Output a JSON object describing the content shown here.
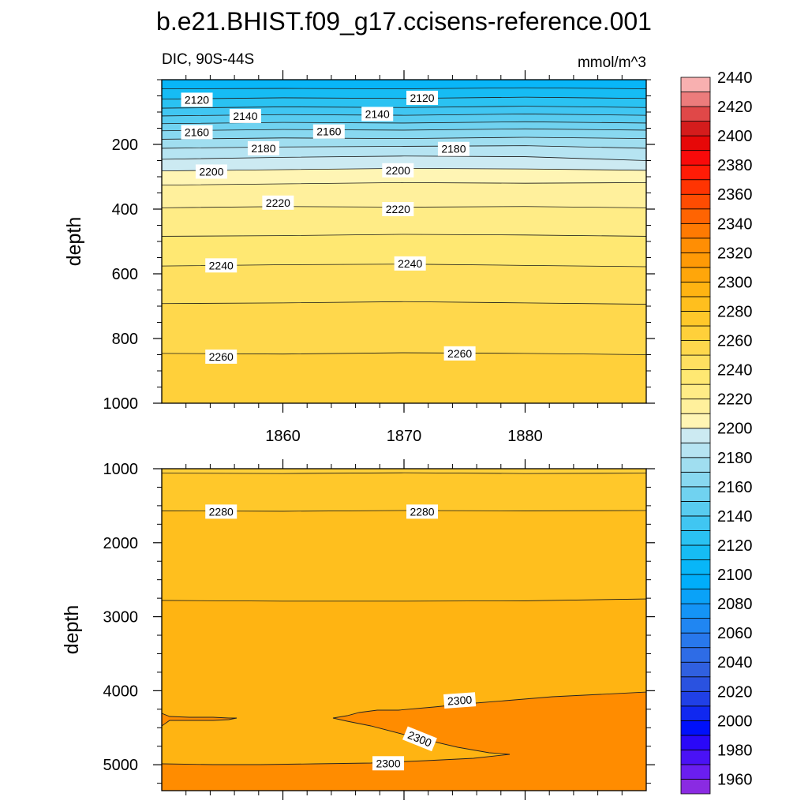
{
  "title": "b.e21.BHIST.f09_g17.ccisens-reference.001",
  "subtitle_left": "DIC, 90S-44S",
  "subtitle_right": "mmol/m^3",
  "colorbar": {
    "levels": [
      1960,
      1970,
      1980,
      1990,
      2000,
      2010,
      2020,
      2030,
      2040,
      2050,
      2060,
      2070,
      2080,
      2090,
      2100,
      2110,
      2120,
      2130,
      2140,
      2150,
      2160,
      2170,
      2180,
      2190,
      2200,
      2210,
      2220,
      2230,
      2240,
      2250,
      2260,
      2270,
      2280,
      2290,
      2300,
      2310,
      2320,
      2330,
      2340,
      2350,
      2360,
      2370,
      2380,
      2390,
      2400,
      2410,
      2420,
      2430,
      2440
    ],
    "label_values": [
      "1960",
      "1980",
      "2000",
      "2020",
      "2040",
      "2060",
      "2080",
      "2100",
      "2120",
      "2140",
      "2160",
      "2180",
      "2200",
      "2220",
      "2240",
      "2260",
      "2280",
      "2300",
      "2320",
      "2340",
      "2360",
      "2380",
      "2400",
      "2420",
      "2440"
    ],
    "colors": [
      "#8a2be2",
      "#6a1ef0",
      "#4a12f5",
      "#2a08f8",
      "#0010fa",
      "#1028f0",
      "#2040e6",
      "#2a52e0",
      "#3060e0",
      "#2e6ce6",
      "#2878ec",
      "#2086f2",
      "#1494f6",
      "#0aa2f8",
      "#00aefa",
      "#08b6f8",
      "#16bcf4",
      "#2ac2f2",
      "#40c6f2",
      "#58ccf0",
      "#70d2f0",
      "#88d8f0",
      "#a0def0",
      "#b6e4f2",
      "#cceaf2",
      "#fff5b4",
      "#fff09c",
      "#ffec86",
      "#ffe872",
      "#ffe060",
      "#ffd84c",
      "#ffd03a",
      "#ffc82a",
      "#ffbf1e",
      "#ffb412",
      "#ffa60a",
      "#ff9a06",
      "#ff8e04",
      "#ff7a02",
      "#ff6402",
      "#ff4c02",
      "#ff3402",
      "#ff1c06",
      "#f80a0a",
      "#e60808",
      "#d41c1c",
      "#e04848",
      "#ec7c7c",
      "#f8b0b0"
    ]
  },
  "chart_data": [
    {
      "type": "contour",
      "panel": "upper",
      "ylabel": "depth",
      "xlabel": "",
      "xlim": [
        1850,
        1890
      ],
      "ylim": [
        1000,
        0
      ],
      "x_ticks": [
        1860,
        1870,
        1880
      ],
      "x_tick_labels": [
        "1860",
        "1870",
        "1880"
      ],
      "y_ticks": [
        200,
        400,
        600,
        800,
        1000
      ],
      "y_tick_labels": [
        "200",
        "400",
        "600",
        "800",
        "1000"
      ],
      "contours": [
        {
          "value": 2110,
          "depths": [
            28,
            27,
            28,
            25,
            28
          ]
        },
        {
          "value": 2120,
          "depths": [
            60,
            56,
            58,
            54,
            58
          ]
        },
        {
          "value": 2130,
          "depths": [
            88,
            84,
            86,
            82,
            86
          ]
        },
        {
          "value": 2140,
          "depths": [
            112,
            108,
            110,
            106,
            110
          ]
        },
        {
          "value": 2150,
          "depths": [
            136,
            132,
            134,
            130,
            134
          ]
        },
        {
          "value": 2160,
          "depths": [
            158,
            154,
            156,
            152,
            156
          ]
        },
        {
          "value": 2170,
          "depths": [
            184,
            180,
            182,
            178,
            182
          ]
        },
        {
          "value": 2180,
          "depths": [
            212,
            208,
            206,
            204,
            212
          ]
        },
        {
          "value": 2190,
          "depths": [
            246,
            240,
            236,
            238,
            250
          ]
        },
        {
          "value": 2200,
          "depths": [
            282,
            278,
            274,
            276,
            280
          ]
        },
        {
          "value": 2210,
          "depths": [
            326,
            322,
            318,
            320,
            318
          ]
        },
        {
          "value": 2220,
          "depths": [
            396,
            392,
            394,
            392,
            396
          ]
        },
        {
          "value": 2230,
          "depths": [
            484,
            482,
            478,
            480,
            484
          ]
        },
        {
          "value": 2240,
          "depths": [
            576,
            572,
            570,
            574,
            578
          ]
        },
        {
          "value": 2250,
          "depths": [
            692,
            690,
            686,
            690,
            694
          ]
        },
        {
          "value": 2260,
          "depths": [
            846,
            848,
            844,
            846,
            850
          ]
        }
      ],
      "labels": [
        {
          "text": "2120",
          "x": 1852.9,
          "y": 62
        },
        {
          "text": "2120",
          "x": 1871.5,
          "y": 56
        },
        {
          "text": "2140",
          "x": 1856.9,
          "y": 112
        },
        {
          "text": "2140",
          "x": 1867.8,
          "y": 106
        },
        {
          "text": "2160",
          "x": 1852.9,
          "y": 162
        },
        {
          "text": "2160",
          "x": 1863.8,
          "y": 160
        },
        {
          "text": "2180",
          "x": 1858.4,
          "y": 212
        },
        {
          "text": "2180",
          "x": 1874.1,
          "y": 214
        },
        {
          "text": "2200",
          "x": 1854.1,
          "y": 284
        },
        {
          "text": "2200",
          "x": 1869.5,
          "y": 280
        },
        {
          "text": "2220",
          "x": 1859.6,
          "y": 380
        },
        {
          "text": "2220",
          "x": 1869.5,
          "y": 400
        },
        {
          "text": "2240",
          "x": 1854.9,
          "y": 574
        },
        {
          "text": "2240",
          "x": 1870.5,
          "y": 568
        },
        {
          "text": "2260",
          "x": 1854.9,
          "y": 856
        },
        {
          "text": "2260",
          "x": 1874.6,
          "y": 846
        }
      ]
    },
    {
      "type": "contour",
      "panel": "lower",
      "ylabel": "depth",
      "xlabel": "",
      "xlim": [
        1850,
        1890
      ],
      "ylim": [
        5350,
        1000
      ],
      "x_ticks": [
        1860,
        1870,
        1880
      ],
      "y_ticks": [
        1000,
        2000,
        3000,
        4000,
        5000
      ],
      "y_tick_labels": [
        "1000",
        "2000",
        "3000",
        "4000",
        "5000"
      ],
      "contours": [
        {
          "value": 2270,
          "depths": [
            1060,
            1065,
            1055,
            1065,
            1060
          ]
        },
        {
          "value": 2280,
          "depths": [
            1570,
            1575,
            1565,
            1570,
            1565
          ]
        },
        {
          "value": 2290,
          "depths": [
            2780,
            2790,
            2790,
            2785,
            2760
          ]
        }
      ],
      "labels": [
        {
          "text": "2280",
          "x": 1854.9,
          "y": 1580
        },
        {
          "text": "2280",
          "x": 1871.5,
          "y": 1580
        },
        {
          "text": "2300",
          "x": 1874.6,
          "y": 4130
        },
        {
          "text": "2300",
          "x": 1871.3,
          "y": 4650
        },
        {
          "text": "2300",
          "x": 1868.7,
          "y": 4980
        }
      ]
    }
  ]
}
